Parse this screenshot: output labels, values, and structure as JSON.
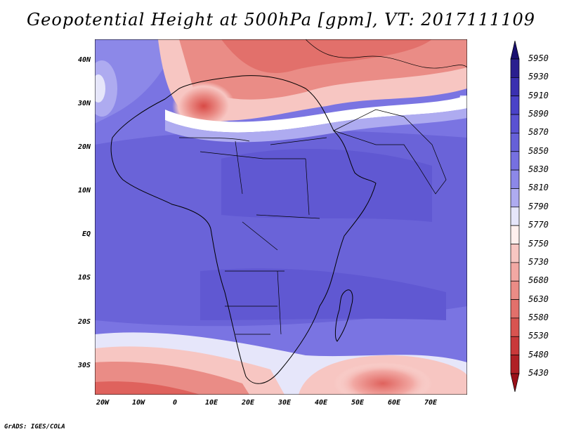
{
  "title": "Geopotential Height at 500hPa [gpm], VT: 2017111109",
  "credit": "GrADS: IGES/COLA",
  "lat_ticks": [
    "40N",
    "30N",
    "20N",
    "10N",
    "EQ",
    "10S",
    "20S",
    "30S"
  ],
  "lon_ticks": [
    "20W",
    "10W",
    "0",
    "10E",
    "20E",
    "30E",
    "40E",
    "50E",
    "60E",
    "70E"
  ],
  "colorbar": {
    "levels": [
      "5950",
      "5930",
      "5910",
      "5890",
      "5870",
      "5850",
      "5830",
      "5810",
      "5790",
      "5770",
      "5750",
      "5730",
      "5680",
      "5630",
      "5580",
      "5530",
      "5480",
      "5430"
    ],
    "colors": [
      "#2a1f8f",
      "#3a30b0",
      "#4a42c8",
      "#5a52d2",
      "#6660d8",
      "#7670e0",
      "#8c88e8",
      "#aeabf0",
      "#e6e6fa",
      "#fff0ee",
      "#f7c6c2",
      "#f2a8a3",
      "#ea8c86",
      "#e2706b",
      "#d85450",
      "#c9393a",
      "#b02025"
    ],
    "top_color": "#1a1070",
    "bottom_color": "#9a1018"
  }
}
